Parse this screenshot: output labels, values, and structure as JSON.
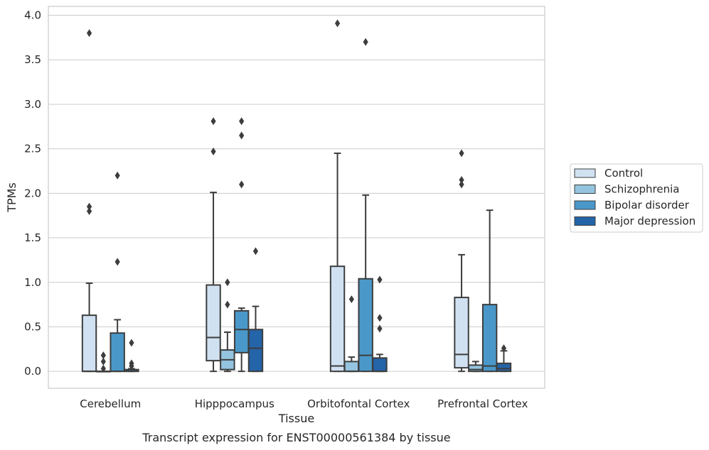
{
  "chart_data": {
    "type": "box",
    "xlabel": "Tissue",
    "ylabel": "TPMs",
    "caption": "Transcript expression for ENST00000561384 by tissue",
    "ylim": [
      -0.19,
      4.1
    ],
    "yticks": [
      "0.0",
      "0.5",
      "1.0",
      "1.5",
      "2.0",
      "2.5",
      "3.0",
      "3.5",
      "4.0"
    ],
    "grid": true,
    "legend_placement": "right",
    "categories": [
      "Cerebellum",
      "Hipppocampus",
      "Orbitofontal Cortex",
      "Prefrontal Cortex"
    ],
    "series": [
      {
        "name": "Control",
        "color": "#d0e1f2",
        "boxes": [
          {
            "whislo": 0.0,
            "q1": 0.0,
            "med": 0.0,
            "q3": 0.63,
            "whishi": 0.99,
            "fliers": [
              1.8,
              1.85,
              3.8
            ]
          },
          {
            "whislo": 0.0,
            "q1": 0.12,
            "med": 0.38,
            "q3": 0.97,
            "whishi": 2.01,
            "fliers": [
              2.47,
              2.81
            ]
          },
          {
            "whislo": 0.0,
            "q1": 0.0,
            "med": 0.06,
            "q3": 1.18,
            "whishi": 2.45,
            "fliers": [
              3.91
            ]
          },
          {
            "whislo": 0.0,
            "q1": 0.04,
            "med": 0.19,
            "q3": 0.83,
            "whishi": 1.31,
            "fliers": [
              2.1,
              2.15,
              2.45
            ]
          }
        ]
      },
      {
        "name": "Schizophrenia",
        "color": "#94c4df",
        "boxes": [
          {
            "whislo": 0.0,
            "q1": 0.0,
            "med": 0.0,
            "q3": 0.0,
            "whishi": 0.0,
            "fliers": [
              0.03,
              0.11,
              0.18
            ]
          },
          {
            "whislo": 0.0,
            "q1": 0.02,
            "med": 0.13,
            "q3": 0.24,
            "whishi": 0.44,
            "fliers": [
              0.75,
              1.0
            ]
          },
          {
            "whislo": 0.0,
            "q1": 0.0,
            "med": 0.0,
            "q3": 0.11,
            "whishi": 0.16,
            "fliers": [
              0.81
            ]
          },
          {
            "whislo": 0.0,
            "q1": 0.0,
            "med": 0.02,
            "q3": 0.07,
            "whishi": 0.11,
            "fliers": []
          }
        ]
      },
      {
        "name": "Bipolar disorder",
        "color": "#4a98c9",
        "boxes": [
          {
            "whislo": 0.0,
            "q1": 0.0,
            "med": 0.0,
            "q3": 0.43,
            "whishi": 0.58,
            "fliers": [
              1.23,
              2.2
            ]
          },
          {
            "whislo": 0.0,
            "q1": 0.21,
            "med": 0.47,
            "q3": 0.68,
            "whishi": 0.71,
            "fliers": [
              2.1,
              2.65,
              2.81
            ]
          },
          {
            "whislo": 0.0,
            "q1": 0.0,
            "med": 0.18,
            "q3": 1.04,
            "whishi": 1.98,
            "fliers": [
              3.7
            ]
          },
          {
            "whislo": 0.0,
            "q1": 0.0,
            "med": 0.06,
            "q3": 0.75,
            "whishi": 1.81,
            "fliers": []
          }
        ]
      },
      {
        "name": "Major depression",
        "color": "#2464a8",
        "boxes": [
          {
            "whislo": 0.0,
            "q1": 0.0,
            "med": 0.0,
            "q3": 0.02,
            "whishi": 0.03,
            "fliers": [
              0.06,
              0.09,
              0.32
            ]
          },
          {
            "whislo": 0.0,
            "q1": 0.0,
            "med": 0.26,
            "q3": 0.47,
            "whishi": 0.73,
            "fliers": [
              1.35
            ]
          },
          {
            "whislo": 0.0,
            "q1": 0.0,
            "med": 0.0,
            "q3": 0.15,
            "whishi": 0.19,
            "fliers": [
              0.48,
              0.6,
              1.03
            ]
          },
          {
            "whislo": 0.0,
            "q1": 0.0,
            "med": 0.03,
            "q3": 0.09,
            "whishi": 0.23,
            "fliers": [
              0.26
            ]
          }
        ]
      }
    ]
  }
}
